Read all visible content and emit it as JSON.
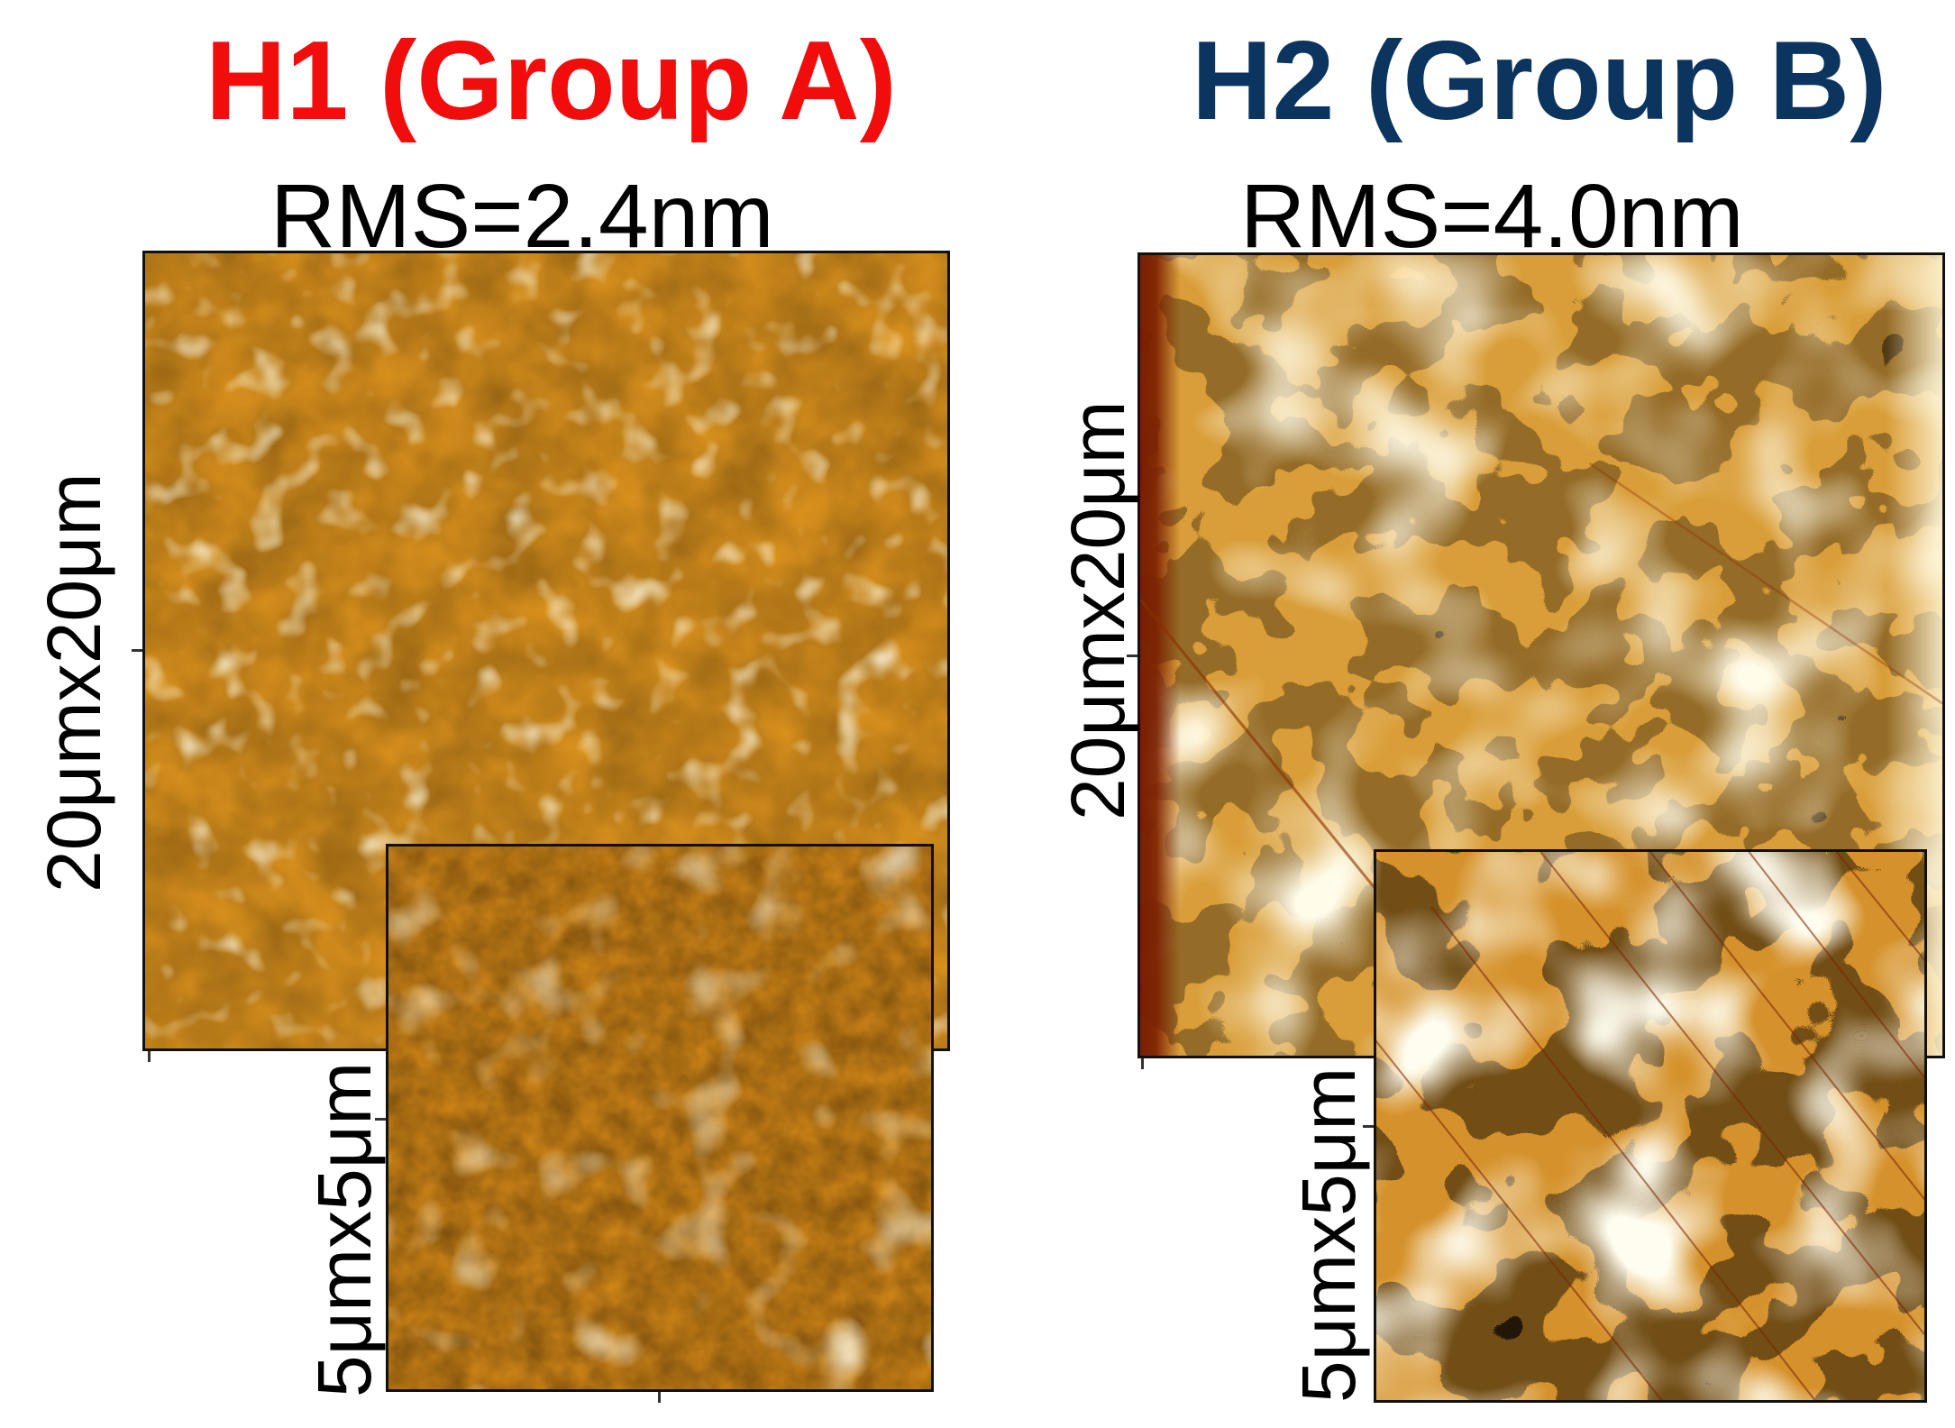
{
  "colors": {
    "group_a_title": "#f20d0d",
    "group_b_title": "#0b345e",
    "afm_light": "#fff3c4",
    "afm_mid": "#f0a020",
    "afm_dark": "#8c2a00"
  },
  "panels": [
    {
      "title": "H1 (Group A)",
      "rms": "RMS=2.4nm",
      "large_scan_label": "20μmx20μm",
      "inset_scan_label": "5μmx5μm"
    },
    {
      "title": "H2 (Group B)",
      "rms": "RMS=4.0nm",
      "large_scan_label": "20μmx20μm",
      "inset_scan_label": "5μmx5μm"
    }
  ]
}
